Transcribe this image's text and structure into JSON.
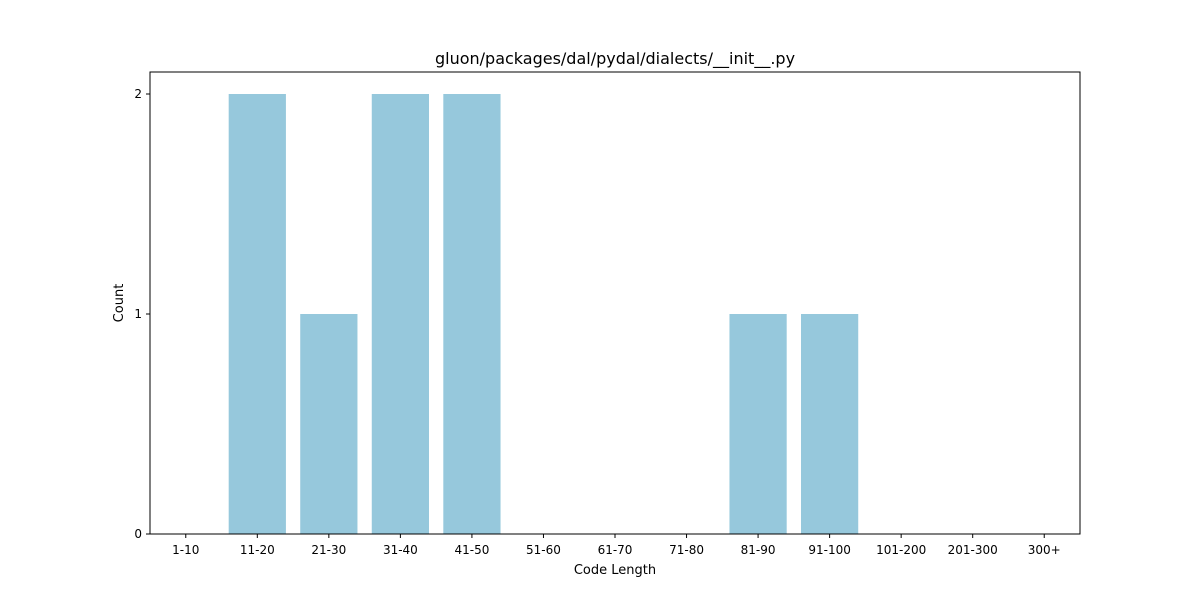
{
  "chart_data": {
    "type": "bar",
    "title": "gluon/packages/dal/pydal/dialects/__init__.py",
    "xlabel": "Code Length",
    "ylabel": "Count",
    "categories": [
      "1-10",
      "11-20",
      "21-30",
      "31-40",
      "41-50",
      "51-60",
      "61-70",
      "71-80",
      "81-90",
      "91-100",
      "101-200",
      "201-300",
      "300+"
    ],
    "values": [
      0,
      2,
      1,
      2,
      2,
      0,
      0,
      0,
      1,
      1,
      0,
      0,
      0
    ],
    "ylim": [
      0,
      2.1
    ],
    "yticks": [
      0,
      1,
      2
    ],
    "bar_color": "#96c8dc",
    "grid": false,
    "legend": "none"
  }
}
